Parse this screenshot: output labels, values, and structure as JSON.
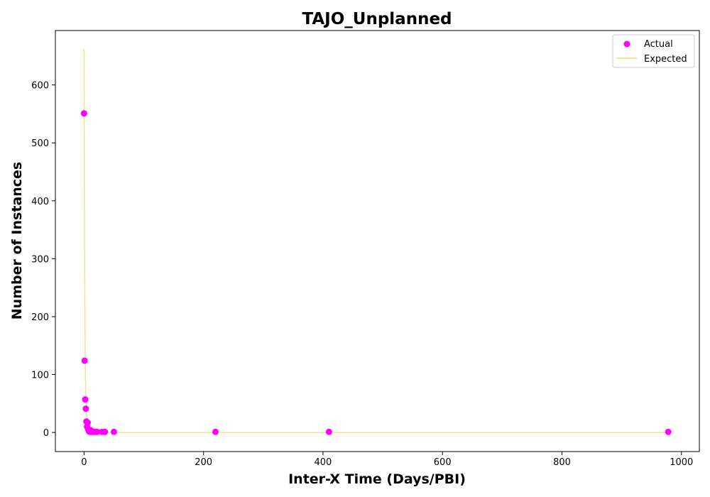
{
  "chart_data": {
    "type": "scatter",
    "title": "TAJO_Unplanned",
    "xlabel": "Inter-X Time (Days/PBI)",
    "ylabel": "Number of Instances",
    "xlim": [
      -48,
      1030
    ],
    "ylim": [
      -33,
      694
    ],
    "xticks": [
      0,
      200,
      400,
      600,
      800,
      1000
    ],
    "yticks": [
      0,
      100,
      200,
      300,
      400,
      500,
      600
    ],
    "grid": false,
    "legend_position": "top-right",
    "colors": {
      "actual": "#ff00ff",
      "expected": "#f0e68c"
    },
    "series": [
      {
        "name": "Actual",
        "kind": "scatter",
        "x": [
          0,
          1,
          2,
          3,
          4,
          5,
          6,
          7,
          8,
          9,
          10,
          11,
          12,
          13,
          15,
          17,
          20,
          22,
          30,
          35,
          50,
          220,
          410,
          978
        ],
        "y": [
          551,
          124,
          57,
          41,
          19,
          10,
          17,
          5,
          2,
          3,
          1,
          4,
          1,
          2,
          1,
          1,
          1,
          1,
          1,
          1,
          1,
          1,
          1,
          1
        ]
      },
      {
        "name": "Expected",
        "kind": "line",
        "x": [
          0,
          0.25,
          0.5,
          0.75,
          1,
          1.5,
          2,
          2.5,
          3,
          4,
          5,
          6,
          8,
          10,
          15,
          20,
          30,
          50,
          100,
          200,
          500,
          978
        ],
        "y": [
          662,
          540,
          441,
          360,
          294,
          196,
          131,
          87,
          58,
          26,
          11.5,
          5.1,
          1.0,
          0.2,
          0,
          0,
          0,
          0,
          0,
          0,
          0,
          0
        ]
      }
    ]
  }
}
